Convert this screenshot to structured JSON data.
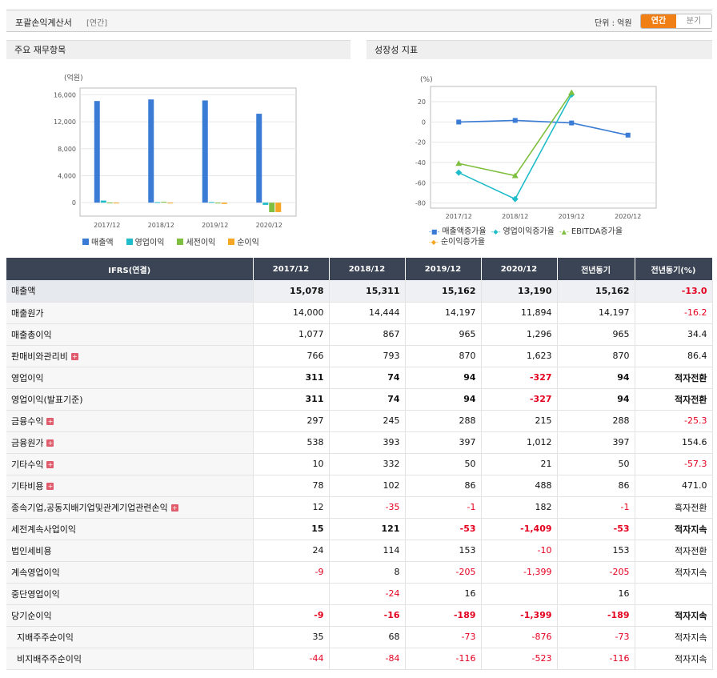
{
  "header": {
    "title": "포괄손익계산서",
    "tag": "[연간]",
    "unit_label": "단위 : 억원",
    "toggle": {
      "annual": "연간",
      "quarter": "분기"
    }
  },
  "panel_left": {
    "title": "주요 재무항목"
  },
  "panel_right": {
    "title": "성장성 지표"
  },
  "colors": {
    "sales": "#3a7bd5",
    "op": "#1fbcc9",
    "pretax": "#7fbf3f",
    "net": "#f5a623",
    "header": "#3a4454",
    "negative": "#e4001f",
    "accent": "#f07f16"
  },
  "chart_data": [
    {
      "type": "bar",
      "ylabel": "(억원)",
      "categories": [
        "2017/12",
        "2018/12",
        "2019/12",
        "2020/12"
      ],
      "ylim": [
        -2000,
        17000
      ],
      "yticks": [
        "16,000",
        "12,000",
        "8,000",
        "4,000",
        "0"
      ],
      "series": [
        {
          "name": "매출액",
          "values": [
            15078,
            15311,
            15162,
            13190
          ]
        },
        {
          "name": "영업이익",
          "values": [
            311,
            74,
            94,
            -327
          ]
        },
        {
          "name": "세전이익",
          "values": [
            15,
            121,
            -53,
            -1409
          ]
        },
        {
          "name": "순이익",
          "values": [
            -9,
            -16,
            -189,
            -1399
          ]
        }
      ],
      "legend": "bottom"
    },
    {
      "type": "line",
      "ylabel": "(%)",
      "categories": [
        "2017/12",
        "2018/12",
        "2019/12",
        "2020/12"
      ],
      "ylim": [
        -85,
        35
      ],
      "yticks": [
        "20",
        "0",
        "-20",
        "-40",
        "-60",
        "-80"
      ],
      "series": [
        {
          "name": "매출액증가율",
          "values": [
            -0.1,
            1.5,
            -1.0,
            -13.0
          ]
        },
        {
          "name": "영업이익증가율",
          "values": [
            -50,
            -76,
            27,
            null
          ]
        },
        {
          "name": "EBITDA증가율",
          "values": [
            -41,
            -53,
            29,
            null
          ]
        },
        {
          "name": "순이익증가율",
          "values": [
            null,
            null,
            null,
            null
          ]
        }
      ],
      "legend": "bottom"
    }
  ],
  "table": {
    "headers": [
      "IFRS(연결)",
      "2017/12",
      "2018/12",
      "2019/12",
      "2020/12",
      "전년동기",
      "전년동기(%)"
    ],
    "rows": [
      {
        "label": "매출액",
        "plus": false,
        "bold": true,
        "values": [
          "15,078",
          "15,311",
          "15,162",
          "13,190",
          "15,162",
          "-13.0"
        ]
      },
      {
        "label": "매출원가",
        "plus": false,
        "bold": false,
        "values": [
          "14,000",
          "14,444",
          "14,197",
          "11,894",
          "14,197",
          "-16.2"
        ]
      },
      {
        "label": "매출총이익",
        "plus": false,
        "bold": false,
        "values": [
          "1,077",
          "867",
          "965",
          "1,296",
          "965",
          "34.4"
        ]
      },
      {
        "label": "판매비와관리비",
        "plus": true,
        "bold": false,
        "values": [
          "766",
          "793",
          "870",
          "1,623",
          "870",
          "86.4"
        ]
      },
      {
        "label": "영업이익",
        "plus": false,
        "bold": true,
        "values": [
          "311",
          "74",
          "94",
          "-327",
          "94",
          "적자전환"
        ]
      },
      {
        "label": "영업이익(발표기준)",
        "plus": false,
        "bold": true,
        "values": [
          "311",
          "74",
          "94",
          "-327",
          "94",
          "적자전환"
        ]
      },
      {
        "label": "금융수익",
        "plus": true,
        "bold": false,
        "values": [
          "297",
          "245",
          "288",
          "215",
          "288",
          "-25.3"
        ]
      },
      {
        "label": "금융원가",
        "plus": true,
        "bold": false,
        "values": [
          "538",
          "393",
          "397",
          "1,012",
          "397",
          "154.6"
        ]
      },
      {
        "label": "기타수익",
        "plus": true,
        "bold": false,
        "values": [
          "10",
          "332",
          "50",
          "21",
          "50",
          "-57.3"
        ]
      },
      {
        "label": "기타비용",
        "plus": true,
        "bold": false,
        "values": [
          "78",
          "102",
          "86",
          "488",
          "86",
          "471.0"
        ]
      },
      {
        "label": "종속기업,공동지배기업및관계기업관련손익",
        "plus": true,
        "bold": false,
        "values": [
          "12",
          "-35",
          "-1",
          "182",
          "-1",
          "흑자전환"
        ]
      },
      {
        "label": "세전계속사업이익",
        "plus": false,
        "bold": true,
        "values": [
          "15",
          "121",
          "-53",
          "-1,409",
          "-53",
          "적자지속"
        ]
      },
      {
        "label": "법인세비용",
        "plus": false,
        "bold": false,
        "values": [
          "24",
          "114",
          "153",
          "-10",
          "153",
          "적자전환"
        ]
      },
      {
        "label": "계속영업이익",
        "plus": false,
        "bold": false,
        "values": [
          "-9",
          "8",
          "-205",
          "-1,399",
          "-205",
          "적자지속"
        ]
      },
      {
        "label": "중단영업이익",
        "plus": false,
        "bold": false,
        "values": [
          "",
          "-24",
          "16",
          "",
          "16",
          ""
        ]
      },
      {
        "label": "당기순이익",
        "plus": false,
        "bold": true,
        "values": [
          "-9",
          "-16",
          "-189",
          "-1,399",
          "-189",
          "적자지속"
        ]
      },
      {
        "label": "  지배주주순이익",
        "plus": false,
        "bold": false,
        "values": [
          "35",
          "68",
          "-73",
          "-876",
          "-73",
          "적자지속"
        ]
      },
      {
        "label": "  비지배주주순이익",
        "plus": false,
        "bold": false,
        "values": [
          "-44",
          "-84",
          "-116",
          "-523",
          "-116",
          "적자지속"
        ]
      }
    ]
  }
}
